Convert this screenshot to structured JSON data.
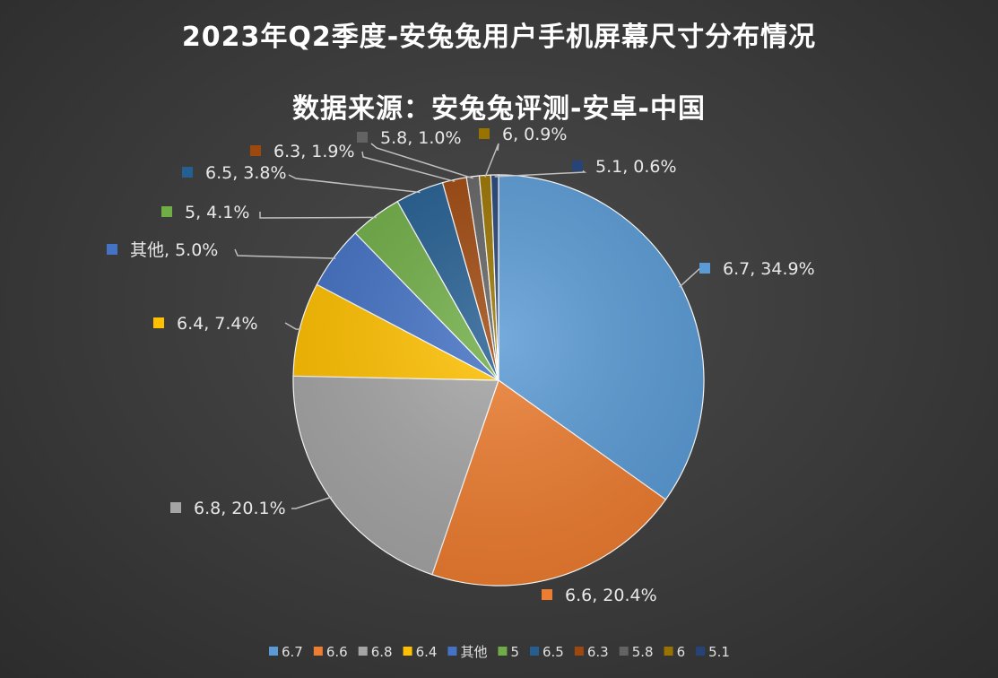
{
  "chart_data": {
    "type": "pie",
    "title_line1": "2023年Q2季度-安兔兔用户手机屏幕尺寸分布情况",
    "title_line2": "数据来源：安兔兔评测-安卓-中国",
    "legend_position": "bottom",
    "slices": [
      {
        "name": "6.7",
        "value": 34.9,
        "label": "6.7, 34.9%",
        "color": "#5b9bd5"
      },
      {
        "name": "6.6",
        "value": 20.4,
        "label": "6.6, 20.4%",
        "color": "#ed7d31"
      },
      {
        "name": "6.8",
        "value": 20.1,
        "label": "6.8, 20.1%",
        "color": "#a5a5a5"
      },
      {
        "name": "6.4",
        "value": 7.4,
        "label": "6.4, 7.4%",
        "color": "#ffc000"
      },
      {
        "name": "其他",
        "value": 5.0,
        "label": "其他, 5.0%",
        "color": "#4472c4"
      },
      {
        "name": "5",
        "value": 4.1,
        "label": "5, 4.1%",
        "color": "#70ad47"
      },
      {
        "name": "6.5",
        "value": 3.8,
        "label": "6.5, 3.8%",
        "color": "#255e91"
      },
      {
        "name": "6.3",
        "value": 1.9,
        "label": "6.3, 1.9%",
        "color": "#9e480e"
      },
      {
        "name": "5.8",
        "value": 1.0,
        "label": "5.8, 1.0%",
        "color": "#636363"
      },
      {
        "name": "6",
        "value": 0.9,
        "label": "6, 0.9%",
        "color": "#997300"
      },
      {
        "name": "5.1",
        "value": 0.6,
        "label": "5.1, 0.6%",
        "color": "#264478"
      }
    ]
  }
}
